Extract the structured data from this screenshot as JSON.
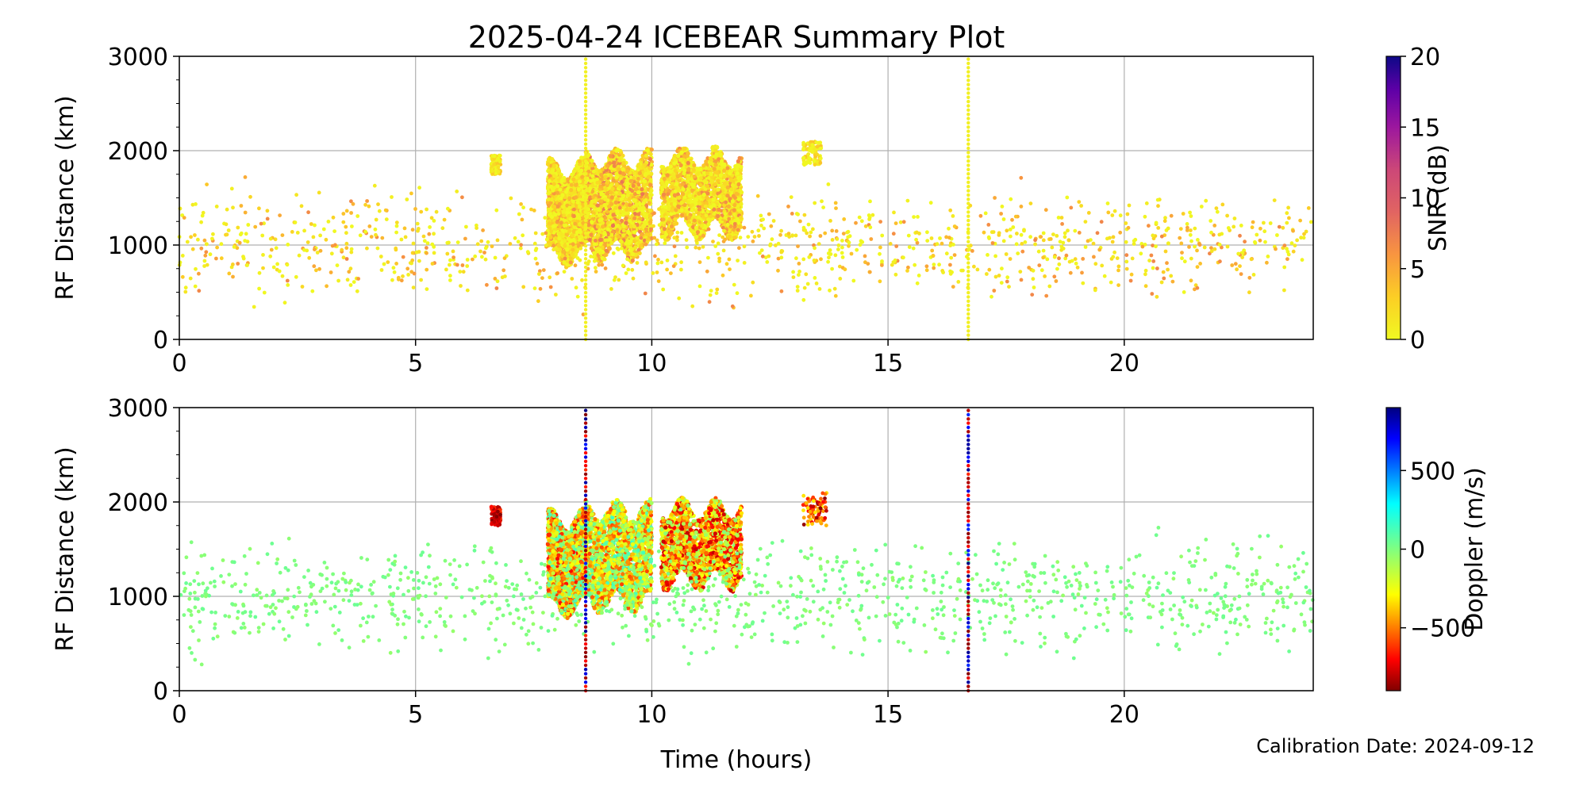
{
  "chart_data": [
    {
      "type": "scatter",
      "title": "2025-04-24 ICEBEAR Summary Plot",
      "xlabel": "",
      "ylabel": "RF Distance (km)",
      "xlim": [
        0,
        24
      ],
      "ylim": [
        0,
        3000
      ],
      "xticks": [
        0,
        5,
        10,
        15,
        20
      ],
      "yticks": [
        0,
        1000,
        2000,
        3000
      ],
      "grid": true,
      "colorbar": {
        "label": "SNR (dB)",
        "range": [
          0,
          20
        ],
        "ticks": [
          0,
          5,
          10,
          15,
          20
        ],
        "colormap": "plasma_r"
      },
      "vertical_streaks_hours": [
        8.6,
        16.7
      ],
      "clusters": [
        {
          "x_range": [
            7.8,
            8.6
          ],
          "y_range": [
            800,
            1900
          ],
          "snr_range": [
            0,
            6
          ],
          "density": "dense"
        },
        {
          "x_range": [
            8.6,
            10.0
          ],
          "y_range": [
            850,
            2000
          ],
          "snr_range": [
            0,
            8
          ],
          "density": "dense"
        },
        {
          "x_range": [
            10.2,
            11.9
          ],
          "y_range": [
            1100,
            2000
          ],
          "snr_range": [
            0,
            7
          ],
          "density": "dense"
        },
        {
          "x_range": [
            13.2,
            13.6
          ],
          "y_range": [
            1850,
            2100
          ],
          "snr_range": [
            0,
            4
          ],
          "density": "moderate"
        },
        {
          "x_range": [
            6.6,
            6.8
          ],
          "y_range": [
            1750,
            1950
          ],
          "snr_range": [
            0,
            4
          ],
          "density": "moderate"
        },
        {
          "x_range": [
            0,
            24
          ],
          "y_range": [
            200,
            1800
          ],
          "snr_range": [
            0,
            7
          ],
          "density": "sparse"
        }
      ]
    },
    {
      "type": "scatter",
      "title": "",
      "xlabel": "Time (hours)",
      "ylabel": "RF Distance (km)",
      "xlim": [
        0,
        24
      ],
      "ylim": [
        0,
        3000
      ],
      "xticks": [
        0,
        5,
        10,
        15,
        20
      ],
      "yticks": [
        0,
        1000,
        2000,
        3000
      ],
      "grid": true,
      "colorbar": {
        "label": "Doppler (m/s)",
        "range": [
          -900,
          900
        ],
        "ticks": [
          -500,
          0,
          500
        ],
        "tick_labels": [
          "−500",
          "0",
          "500"
        ],
        "colormap": "jet_r"
      },
      "vertical_streaks_hours": [
        8.6,
        16.7
      ],
      "clusters": [
        {
          "x_range": [
            7.8,
            8.6
          ],
          "y_range": [
            800,
            1900
          ],
          "doppler_range": [
            -700,
            150
          ],
          "density": "dense"
        },
        {
          "x_range": [
            8.6,
            10.0
          ],
          "y_range": [
            850,
            2000
          ],
          "doppler_range": [
            -600,
            150
          ],
          "density": "dense"
        },
        {
          "x_range": [
            10.2,
            11.9
          ],
          "y_range": [
            1100,
            2000
          ],
          "doppler_range": [
            -800,
            0
          ],
          "density": "dense"
        },
        {
          "x_range": [
            13.2,
            13.7
          ],
          "y_range": [
            1750,
            2100
          ],
          "doppler_range": [
            -900,
            -300
          ],
          "density": "moderate"
        },
        {
          "x_range": [
            6.6,
            6.8
          ],
          "y_range": [
            1750,
            1950
          ],
          "doppler_range": [
            -900,
            -600
          ],
          "density": "moderate"
        },
        {
          "x_range": [
            0,
            24
          ],
          "y_range": [
            200,
            1800
          ],
          "doppler_range": [
            -50,
            50
          ],
          "density": "sparse"
        }
      ]
    }
  ],
  "footer": {
    "calibration": "Calibration Date: 2024-09-12"
  }
}
